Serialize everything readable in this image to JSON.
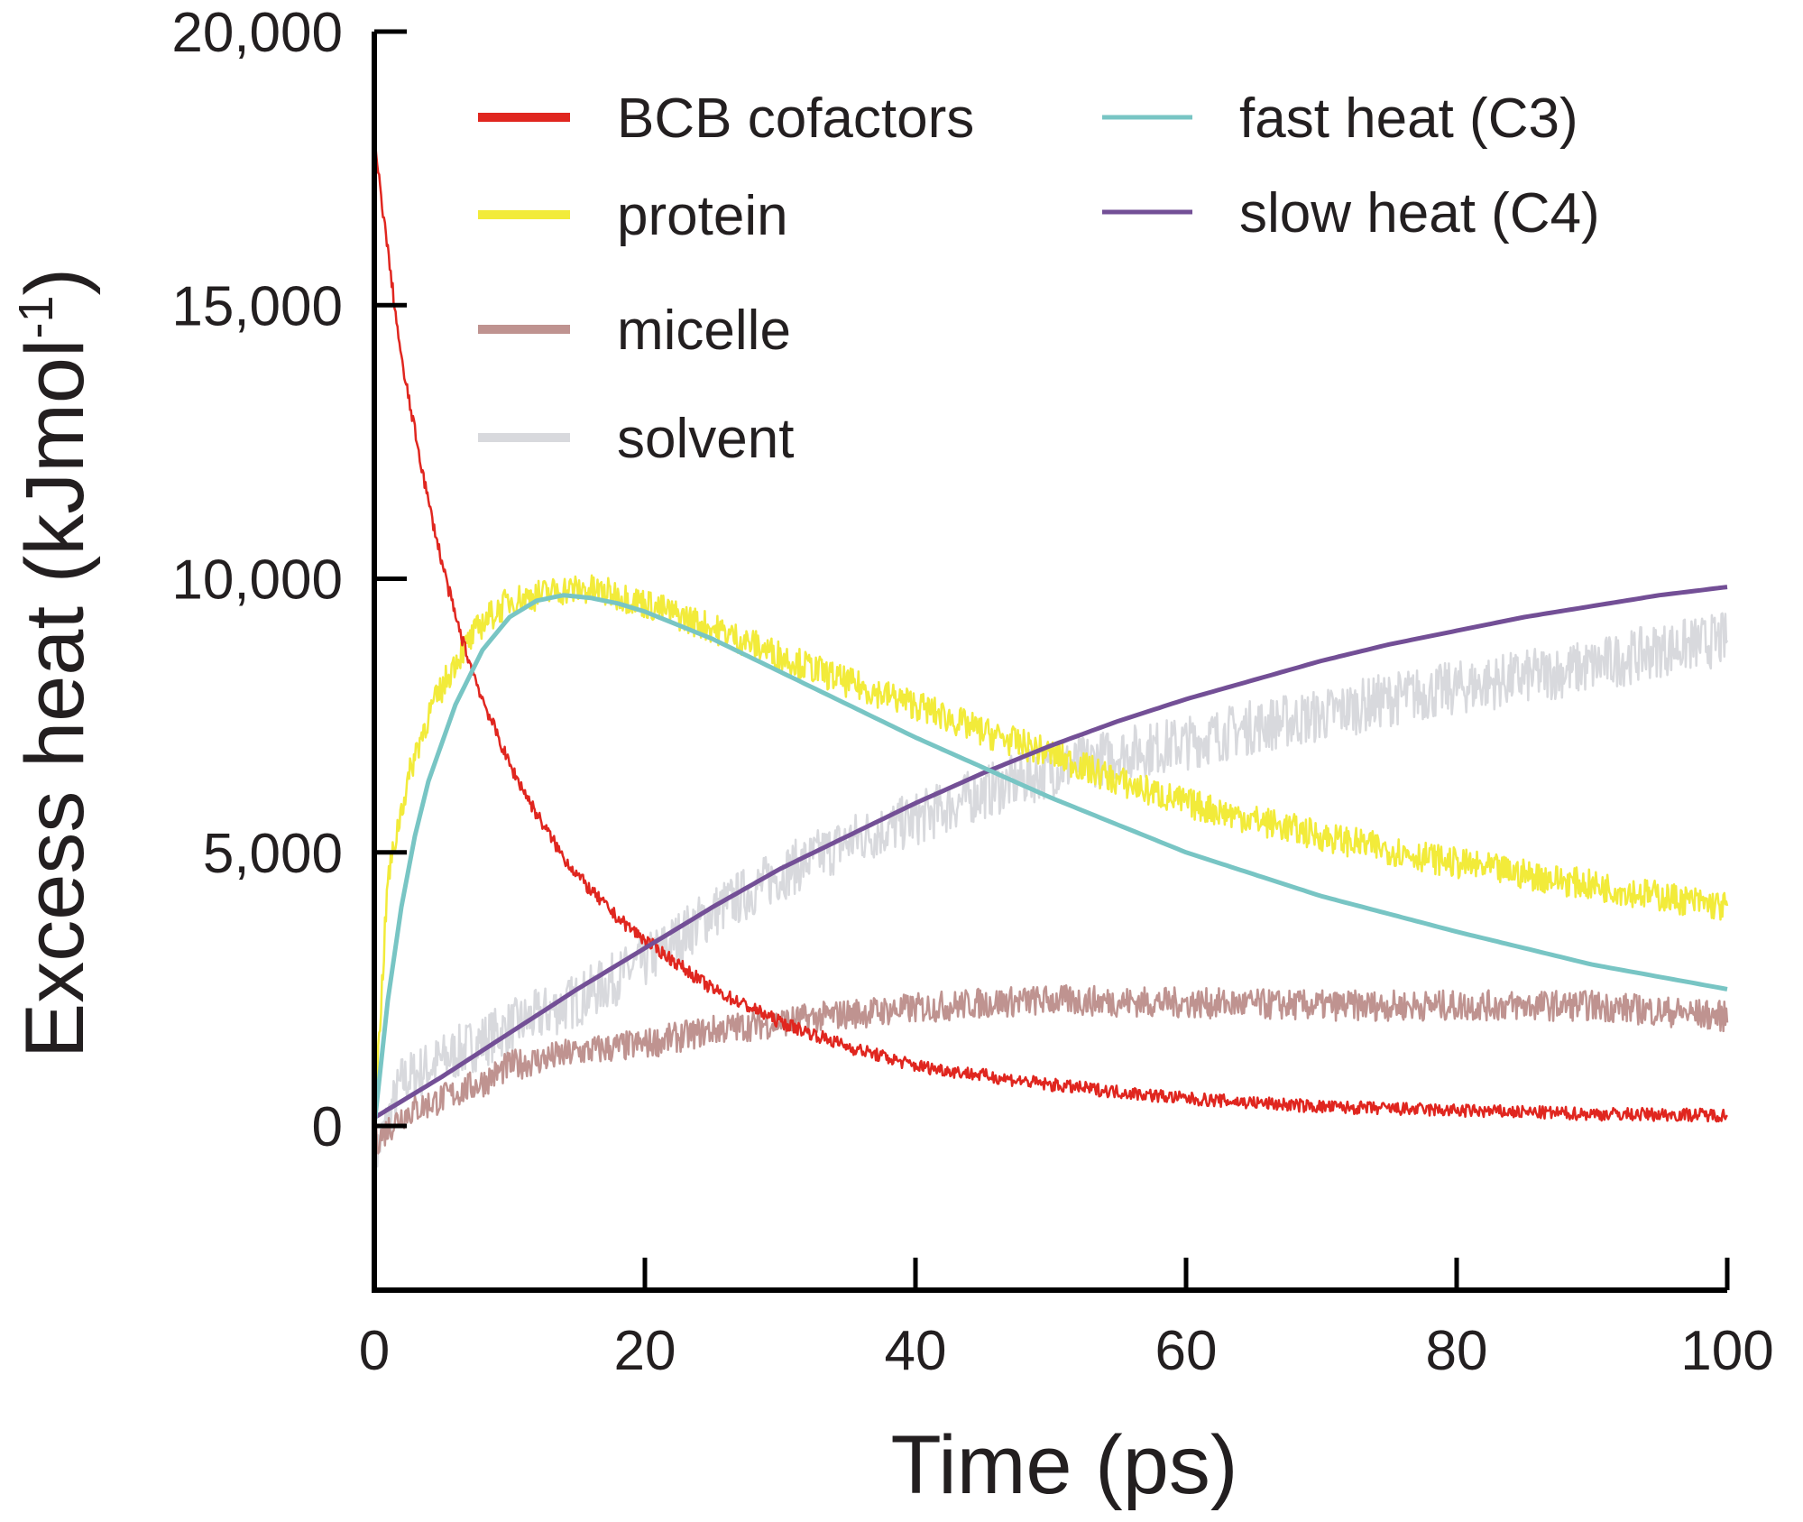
{
  "chart_data": {
    "type": "line",
    "xlabel": "Time (ps)",
    "ylabel": {
      "main": "Excess heat (kJmol",
      "superscript": "-1",
      "close": ")"
    },
    "xlim": [
      0,
      100
    ],
    "ylim": [
      -3000,
      20000
    ],
    "xticks": [
      0,
      20,
      40,
      60,
      80,
      100
    ],
    "xtick_labels": [
      "0",
      "20",
      "40",
      "60",
      "80",
      "100"
    ],
    "yticks": [
      0,
      5000,
      10000,
      15000,
      20000
    ],
    "ytick_labels": [
      "0",
      "5,000",
      "10,000",
      "15,000",
      "20,000"
    ],
    "grid": false,
    "legend_placement": "top-right",
    "series": [
      {
        "name": "BCB cofactors",
        "color": "#e0261f",
        "noisy": true,
        "x": [
          0,
          1,
          2,
          3,
          4,
          5,
          6,
          7,
          8,
          10,
          12,
          14,
          16,
          18,
          20,
          25,
          30,
          35,
          40,
          50,
          60,
          70,
          80,
          90,
          100
        ],
        "y": [
          18000,
          16000,
          14000,
          12700,
          11400,
          10300,
          9300,
          8500,
          7800,
          6600,
          5700,
          4900,
          4300,
          3800,
          3400,
          2500,
          1900,
          1450,
          1100,
          750,
          500,
          350,
          280,
          220,
          200
        ]
      },
      {
        "name": "protein",
        "color": "#f2eb3a",
        "noisy": true,
        "x": [
          0,
          1,
          2,
          3,
          4,
          6,
          8,
          10,
          12,
          14,
          16,
          18,
          20,
          25,
          30,
          35,
          40,
          45,
          50,
          55,
          60,
          70,
          80,
          90,
          100
        ],
        "y": [
          0,
          4500,
          5800,
          6800,
          7500,
          8500,
          9200,
          9600,
          9700,
          9800,
          9800,
          9700,
          9550,
          9100,
          8600,
          8100,
          7700,
          7200,
          6800,
          6300,
          5900,
          5300,
          4800,
          4400,
          4000
        ]
      },
      {
        "name": "micelle",
        "color": "#bf9390",
        "noisy": true,
        "x": [
          0,
          2,
          5,
          8,
          10,
          15,
          20,
          25,
          30,
          35,
          40,
          45,
          50,
          60,
          70,
          80,
          90,
          100
        ],
        "y": [
          -300,
          200,
          500,
          800,
          1100,
          1350,
          1500,
          1750,
          1900,
          2050,
          2150,
          2250,
          2300,
          2250,
          2200,
          2200,
          2200,
          2000
        ]
      },
      {
        "name": "solvent",
        "color": "#d8d9dd",
        "noisy": true,
        "x": [
          0,
          2,
          5,
          10,
          15,
          20,
          25,
          30,
          35,
          40,
          45,
          50,
          55,
          60,
          65,
          70,
          75,
          80,
          85,
          90,
          95,
          100
        ],
        "y": [
          -600,
          800,
          1200,
          1800,
          2300,
          3000,
          3900,
          4600,
          5200,
          5600,
          6100,
          6500,
          6800,
          7000,
          7300,
          7500,
          7800,
          8000,
          8200,
          8400,
          8700,
          8900
        ]
      },
      {
        "name": "fast heat (C3)",
        "color": "#78c5c4",
        "noisy": false,
        "x": [
          0,
          1,
          2,
          3,
          4,
          6,
          8,
          10,
          12,
          14,
          16,
          18,
          20,
          25,
          30,
          35,
          40,
          45,
          50,
          55,
          60,
          70,
          80,
          90,
          100
        ],
        "y": [
          0,
          2300,
          4000,
          5300,
          6300,
          7700,
          8700,
          9300,
          9600,
          9700,
          9650,
          9550,
          9400,
          8900,
          8300,
          7700,
          7100,
          6550,
          6000,
          5500,
          5000,
          4200,
          3550,
          2950,
          2500
        ]
      },
      {
        "name": "slow heat (C4)",
        "color": "#734f96",
        "noisy": false,
        "x": [
          0,
          5,
          10,
          15,
          20,
          25,
          30,
          35,
          40,
          45,
          50,
          55,
          60,
          65,
          70,
          75,
          80,
          85,
          90,
          95,
          100
        ],
        "y": [
          150,
          900,
          1700,
          2500,
          3250,
          4000,
          4700,
          5300,
          5900,
          6450,
          6950,
          7400,
          7800,
          8150,
          8500,
          8800,
          9050,
          9300,
          9500,
          9700,
          9850
        ]
      }
    ]
  }
}
